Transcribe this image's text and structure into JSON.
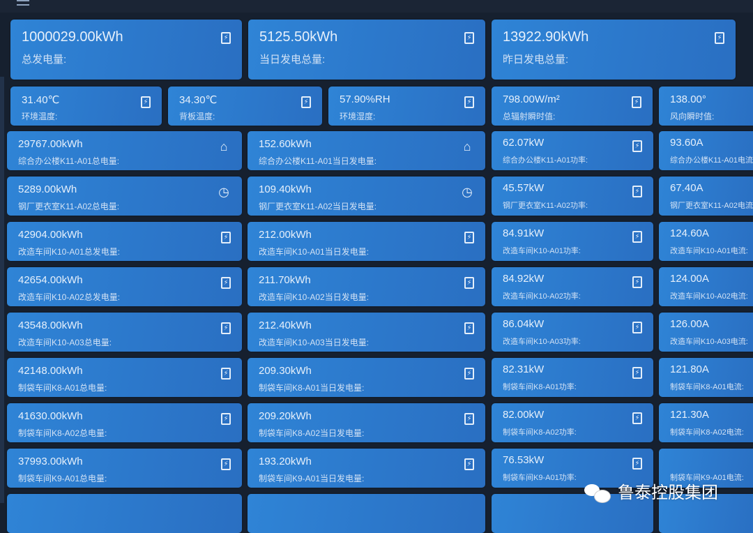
{
  "summary": [
    {
      "value": "1000029.00kWh",
      "label": "总发电量:",
      "icon": "file-icon"
    },
    {
      "value": "5125.50kWh",
      "label": "当日发电总量:",
      "icon": "file-icon"
    },
    {
      "value": "13922.90kWh",
      "label": "昨日发电总量:",
      "icon": "file-icon"
    }
  ],
  "environment": [
    {
      "value": "31.40℃",
      "label": "环境温度:",
      "icon": "file-icon"
    },
    {
      "value": "34.30℃",
      "label": "背板温度:",
      "icon": "file-icon"
    },
    {
      "value": "57.90%RH",
      "label": "环境湿度:",
      "icon": "file-icon"
    },
    {
      "value": "798.00W/m²",
      "label": "总辐射瞬时值:",
      "icon": "file-icon"
    },
    {
      "value": "138.00°",
      "label": "风向瞬时值:",
      "icon": ""
    }
  ],
  "meters": [
    {
      "total": "29767.00kWh",
      "total_label": "综合办公楼K11-A01总电量:",
      "daily": "152.60kWh",
      "daily_label": "综合办公楼K11-A01当日发电量:",
      "power": "62.07kW",
      "power_label": "综合办公楼K11-A01功率:",
      "current": "93.60A",
      "current_label": "综合办公楼K11-A01电流:",
      "icon": "home-icon"
    },
    {
      "total": "5289.00kWh",
      "total_label": "钢厂更衣室K11-A02总电量:",
      "daily": "109.40kWh",
      "daily_label": "钢厂更衣室K11-A02当日发电量:",
      "power": "45.57kW",
      "power_label": "钢厂更衣室K11-A02功率:",
      "current": "67.40A",
      "current_label": "钢厂更衣室K11-A02电流:",
      "icon": "gauge-icon"
    },
    {
      "total": "42904.00kWh",
      "total_label": "改造车间K10-A01总发电量:",
      "daily": "212.00kWh",
      "daily_label": "改造车间K10-A01当日发电量:",
      "power": "84.91kW",
      "power_label": "改造车间K10-A01功率:",
      "current": "124.60A",
      "current_label": "改造车间K10-A01电流:",
      "icon": "file-icon"
    },
    {
      "total": "42654.00kWh",
      "total_label": "改造车间K10-A02总发电量:",
      "daily": "211.70kWh",
      "daily_label": "改造车间K10-A02当日发电量:",
      "power": "84.92kW",
      "power_label": "改造车间K10-A02功率:",
      "current": "124.00A",
      "current_label": "改造车间K10-A02电流:",
      "icon": "file-icon"
    },
    {
      "total": "43548.00kWh",
      "total_label": "改造车间K10-A03总电量:",
      "daily": "212.40kWh",
      "daily_label": "改造车间K10-A03当日发电量:",
      "power": "86.04kW",
      "power_label": "改造车间K10-A03功率:",
      "current": "126.00A",
      "current_label": "改造车间K10-A03电流:",
      "icon": "file-icon"
    },
    {
      "total": "42148.00kWh",
      "total_label": "制袋车间K8-A01总电量:",
      "daily": "209.30kWh",
      "daily_label": "制袋车间K8-A01当日发电量:",
      "power": "82.31kW",
      "power_label": "制袋车间K8-A01功率:",
      "current": "121.80A",
      "current_label": "制袋车间K8-A01电流:",
      "icon": "file-icon"
    },
    {
      "total": "41630.00kWh",
      "total_label": "制袋车间K8-A02总电量:",
      "daily": "209.20kWh",
      "daily_label": "制袋车间K8-A02当日发电量:",
      "power": "82.00kW",
      "power_label": "制袋车间K8-A02功率:",
      "current": "121.30A",
      "current_label": "制袋车间K8-A02电流:",
      "icon": "file-icon"
    },
    {
      "total": "37993.00kWh",
      "total_label": "制袋车间K9-A01总电量:",
      "daily": "193.20kWh",
      "daily_label": "制袋车间K9-A01当日发电量:",
      "power": "76.53kW",
      "power_label": "制袋车间K9-A01功率:",
      "current": "",
      "current_label": "制袋车间K9-A01电流:",
      "icon": "file-icon"
    }
  ],
  "watermark": {
    "text": "鲁泰控股集团"
  }
}
